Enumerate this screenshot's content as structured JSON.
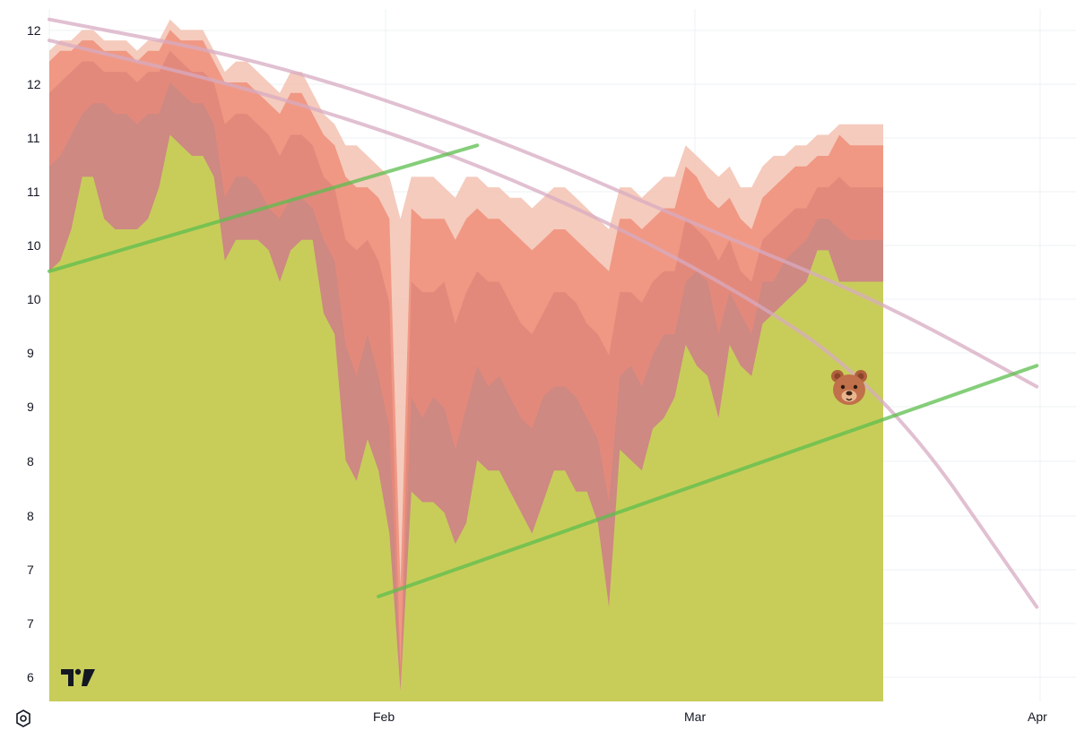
{
  "chart_data": {
    "type": "area",
    "y_axis": {
      "tick_labels": [
        "12",
        "12",
        "11",
        "11",
        "10",
        "10",
        "9",
        "9",
        "8",
        "8",
        "7",
        "7",
        "6"
      ],
      "position": "left"
    },
    "x_axis": {
      "tick_labels": [
        "Feb",
        "Mar",
        "Apr"
      ]
    },
    "grid": true,
    "x": [
      0,
      5,
      10,
      15,
      20,
      25,
      30,
      35,
      40,
      45,
      50,
      55,
      60,
      65,
      70,
      75,
      80,
      85,
      90,
      95,
      100,
      105,
      110,
      115,
      120,
      125,
      130,
      135,
      140,
      145,
      150,
      155,
      160,
      165,
      170,
      175,
      180,
      185,
      190,
      195,
      200,
      205,
      210,
      215,
      220,
      225,
      230,
      235,
      240,
      245,
      250,
      255,
      260,
      265,
      270,
      275,
      280,
      285,
      290,
      295,
      300,
      305,
      310,
      315,
      320,
      325,
      330,
      335,
      340,
      345,
      350,
      355,
      360,
      365,
      370,
      375,
      380
    ],
    "series": [
      {
        "role": "base",
        "color": "#c8cd5a",
        "values": [
          10.0,
          10.1,
          10.4,
          10.9,
          10.9,
          10.5,
          10.4,
          10.4,
          10.4,
          10.5,
          10.8,
          11.3,
          11.2,
          11.1,
          11.1,
          10.9,
          10.1,
          10.3,
          10.3,
          10.3,
          10.2,
          9.9,
          10.2,
          10.3,
          10.3,
          9.6,
          9.4,
          8.2,
          8.0,
          8.4,
          8.1,
          7.5,
          6.0,
          7.9,
          7.8,
          7.8,
          7.7,
          7.4,
          7.6,
          8.2,
          8.1,
          8.1,
          7.9,
          7.7,
          7.5,
          7.8,
          8.1,
          8.1,
          7.9,
          7.9,
          7.6,
          6.8,
          8.3,
          8.2,
          8.1,
          8.5,
          8.6,
          8.8,
          9.3,
          9.1,
          9.0,
          8.6,
          9.3,
          9.1,
          9.0,
          9.5,
          9.6,
          9.7,
          9.8,
          9.9,
          10.2,
          10.2,
          9.9,
          9.9,
          9.9,
          9.9,
          9.9
        ]
      },
      {
        "role": "band",
        "color": "#c98a84",
        "values": [
          11.0,
          11.1,
          11.3,
          11.5,
          11.6,
          11.6,
          11.5,
          11.5,
          11.4,
          11.5,
          11.5,
          11.8,
          11.7,
          11.6,
          11.6,
          11.4,
          10.7,
          10.9,
          10.9,
          10.8,
          10.6,
          10.5,
          10.7,
          10.7,
          10.6,
          10.3,
          10.1,
          9.3,
          9.0,
          9.4,
          9.0,
          8.5,
          6.1,
          8.8,
          8.6,
          8.8,
          8.7,
          8.3,
          8.7,
          9.1,
          8.9,
          9.0,
          8.8,
          8.6,
          8.5,
          8.8,
          8.9,
          8.9,
          8.8,
          8.6,
          8.4,
          7.8,
          9.0,
          9.1,
          8.9,
          9.2,
          9.4,
          9.4,
          9.9,
          10.0,
          9.9,
          9.4,
          9.8,
          9.6,
          9.4,
          9.9,
          9.9,
          10.1,
          10.2,
          10.3,
          10.5,
          10.5,
          10.4,
          10.3,
          10.3,
          10.3,
          10.3
        ]
      },
      {
        "role": "band",
        "color": "#e1867a",
        "values": [
          11.7,
          11.8,
          11.9,
          12.0,
          12.0,
          11.9,
          11.9,
          11.9,
          11.8,
          11.9,
          11.9,
          12.1,
          12.0,
          11.9,
          11.9,
          11.8,
          11.4,
          11.5,
          11.5,
          11.4,
          11.3,
          11.1,
          11.3,
          11.3,
          11.2,
          10.9,
          10.8,
          10.3,
          10.2,
          10.3,
          10.1,
          9.7,
          6.2,
          9.9,
          9.8,
          9.8,
          9.9,
          9.5,
          9.8,
          10.0,
          9.9,
          9.9,
          9.7,
          9.5,
          9.4,
          9.6,
          9.8,
          9.8,
          9.7,
          9.5,
          9.4,
          9.2,
          9.8,
          9.8,
          9.7,
          9.9,
          10.0,
          10.0,
          10.5,
          10.4,
          10.3,
          10.1,
          10.3,
          10.0,
          9.9,
          10.3,
          10.4,
          10.5,
          10.6,
          10.6,
          10.8,
          10.8,
          10.9,
          10.8,
          10.8,
          10.8,
          10.8
        ]
      },
      {
        "role": "band",
        "color": "#ef8f7a",
        "values": [
          12.0,
          12.1,
          12.1,
          12.2,
          12.2,
          12.1,
          12.1,
          12.1,
          12.0,
          12.1,
          12.1,
          12.3,
          12.2,
          12.2,
          12.2,
          12.0,
          11.8,
          11.8,
          11.8,
          11.7,
          11.6,
          11.5,
          11.7,
          11.7,
          11.5,
          11.3,
          11.2,
          10.9,
          10.8,
          10.8,
          10.7,
          10.5,
          7.0,
          10.6,
          10.5,
          10.5,
          10.5,
          10.3,
          10.5,
          10.6,
          10.5,
          10.5,
          10.4,
          10.3,
          10.2,
          10.3,
          10.4,
          10.4,
          10.3,
          10.2,
          10.1,
          10.0,
          10.5,
          10.5,
          10.4,
          10.5,
          10.6,
          10.6,
          11.0,
          10.9,
          10.7,
          10.6,
          10.7,
          10.5,
          10.4,
          10.7,
          10.8,
          10.9,
          11.0,
          11.0,
          11.1,
          11.1,
          11.3,
          11.2,
          11.2,
          11.2,
          11.2
        ]
      },
      {
        "role": "band",
        "color": "#f3c2b2",
        "values": [
          12.1,
          12.2,
          12.2,
          12.3,
          12.3,
          12.2,
          12.2,
          12.2,
          12.1,
          12.2,
          12.2,
          12.4,
          12.3,
          12.3,
          12.3,
          12.1,
          11.9,
          12.0,
          12.0,
          11.9,
          11.8,
          11.7,
          11.9,
          11.9,
          11.7,
          11.5,
          11.4,
          11.2,
          11.2,
          11.1,
          11.0,
          10.9,
          10.5,
          10.9,
          10.9,
          10.9,
          10.8,
          10.7,
          10.9,
          10.9,
          10.8,
          10.8,
          10.7,
          10.7,
          10.6,
          10.7,
          10.8,
          10.8,
          10.7,
          10.6,
          10.5,
          10.4,
          10.8,
          10.8,
          10.7,
          10.8,
          10.9,
          10.9,
          11.2,
          11.1,
          11.0,
          10.9,
          11.0,
          10.8,
          10.8,
          11.0,
          11.1,
          11.1,
          11.2,
          11.2,
          11.3,
          11.3,
          11.4,
          11.4,
          11.4,
          11.4,
          11.4
        ]
      }
    ],
    "trendlines": [
      {
        "color": "#d7abc2",
        "shape": "curve",
        "points": [
          [
            0,
            12.4
          ],
          [
            100,
            12.0
          ],
          [
            200,
            11.3
          ],
          [
            300,
            10.4
          ],
          [
            380,
            9.7
          ],
          [
            450,
            8.9
          ]
        ]
      },
      {
        "color": "#d7abc2",
        "shape": "curve",
        "points": [
          [
            0,
            12.2
          ],
          [
            100,
            11.7
          ],
          [
            200,
            11.0
          ],
          [
            300,
            10.0
          ],
          [
            380,
            8.9
          ],
          [
            450,
            6.8
          ]
        ]
      },
      {
        "color": "#5cbd4e",
        "shape": "line",
        "points": [
          [
            0,
            10.0
          ],
          [
            195,
            11.2
          ]
        ]
      },
      {
        "color": "#5cbd4e",
        "shape": "line",
        "points": [
          [
            150,
            6.9
          ],
          [
            450,
            9.1
          ]
        ]
      }
    ]
  },
  "logo": {
    "name": "tradingview-logo"
  },
  "marker": {
    "icon": "bear-icon",
    "glyph": "🐻"
  },
  "colors": {
    "grid": "#eef0f3",
    "text": "#131722"
  }
}
